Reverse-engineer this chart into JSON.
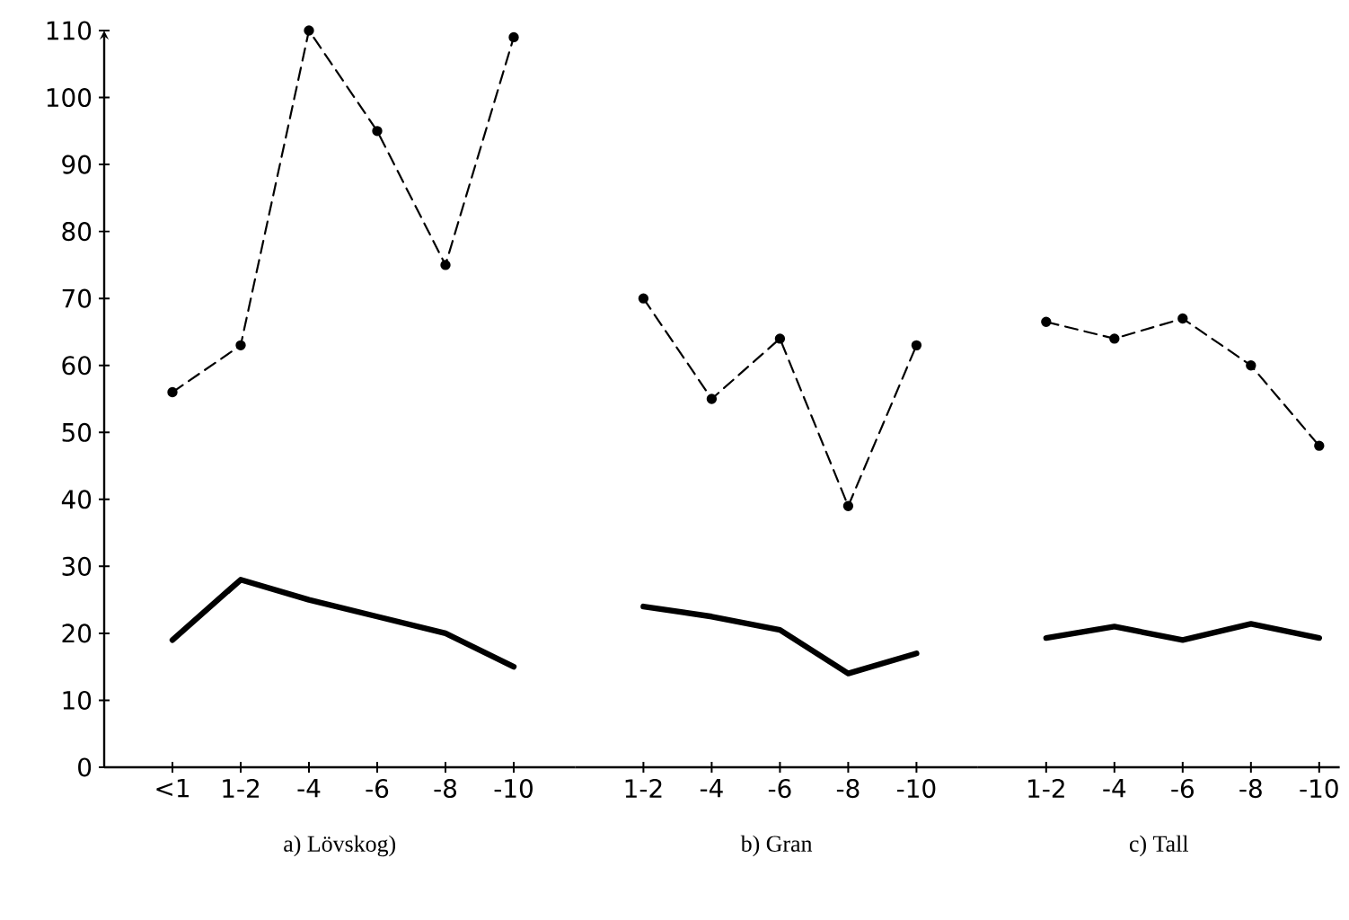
{
  "chart_data": [
    {
      "type": "line",
      "xlabel": "a)  Lövskog)",
      "categories": [
        "<1",
        "1-2",
        "-4",
        "-6",
        "-8",
        "-10"
      ],
      "ylim": [
        0,
        110
      ],
      "yticks": [
        0,
        10,
        20,
        30,
        40,
        50,
        60,
        70,
        80,
        90,
        100,
        110
      ],
      "series": [
        {
          "color": "#000000",
          "marker": "circle",
          "line_style": "dashed",
          "values": [
            56,
            63,
            110,
            95,
            75,
            109
          ]
        },
        {
          "color": "#000000",
          "marker": "none",
          "line_style": "solid",
          "values": [
            19,
            28,
            25,
            22.5,
            20,
            15
          ]
        }
      ]
    },
    {
      "type": "line",
      "xlabel": "b)  Gran",
      "categories": [
        "1-2",
        "-4",
        "-6",
        "-8",
        "-10"
      ],
      "ylim": [
        0,
        110
      ],
      "tick_labels": "x",
      "series": [
        {
          "color": "#000000",
          "marker": "circle",
          "line_style": "dashed",
          "values": [
            70,
            55,
            64,
            39,
            63
          ]
        },
        {
          "color": "#000000",
          "marker": "none",
          "line_style": "solid",
          "values": [
            24,
            22.5,
            20.5,
            14,
            17
          ]
        }
      ]
    },
    {
      "type": "line",
      "xlabel": "c)  Tall",
      "categories": [
        "1-2",
        "-4",
        "-6",
        "-8",
        "-10"
      ],
      "ylim": [
        0,
        110
      ],
      "tick_labels": "x",
      "series": [
        {
          "color": "#000000",
          "marker": "circle",
          "line_style": "dashed",
          "values": [
            66.5,
            64,
            67,
            60,
            48
          ]
        },
        {
          "color": "#000000",
          "marker": "none",
          "line_style": "solid",
          "values": [
            19.3,
            21,
            19,
            21.4,
            19.3
          ]
        }
      ]
    }
  ]
}
